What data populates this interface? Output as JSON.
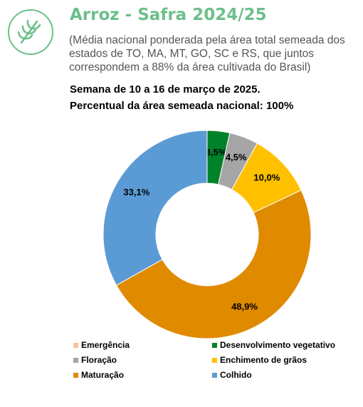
{
  "chart_data": {
    "type": "donut",
    "title": "Arroz - Safra 2024/25",
    "subtitle": "(Média nacional ponderada pela área total semeada dos estados de TO, MA, MT, GO, SC e RS, que juntos correspondem a 88% da área cultivada do Brasil)",
    "notes": [
      "Semana de 10 a 16 de março de 2025.",
      "Percentual da área semeada nacional: 100%"
    ],
    "categories": [
      "Emergência",
      "Desenvolvimento vegetativo",
      "Floração",
      "Enchimento de grãos",
      "Maturação",
      "Colhido"
    ],
    "values": [
      0,
      3.5,
      4.5,
      10.0,
      48.9,
      33.1
    ],
    "value_labels": [
      null,
      "3,5%",
      "4,5%",
      "10,0%",
      "48,9%",
      "33,1%"
    ],
    "colors": [
      "#f4c2a1",
      "#00822a",
      "#a5a5a5",
      "#ffc000",
      "#e08a00",
      "#5b9bd5"
    ]
  }
}
